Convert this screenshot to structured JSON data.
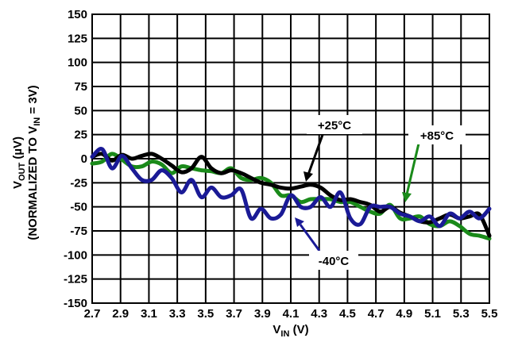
{
  "chart_data": {
    "type": "line",
    "title": "",
    "xlabel": {
      "main": "V",
      "sub": "IN",
      "unit": " (V)"
    },
    "ylabel": {
      "line1": {
        "main": "V",
        "sub": "OUT",
        "unit": " (µV)"
      },
      "line2": {
        "pre": "(NORMALIZED TO V",
        "sub": "IN",
        "post": " = 3V)"
      }
    },
    "xlim": [
      2.7,
      5.5
    ],
    "ylim": [
      -150,
      150
    ],
    "grid": true,
    "x_ticks": [
      "2.7",
      "2.9",
      "3.1",
      "3.3",
      "3.5",
      "3.7",
      "3.9",
      "4.1",
      "4.3",
      "4.5",
      "4.7",
      "4.9",
      "5.1",
      "5.3",
      "5.5"
    ],
    "y_ticks": [
      "150",
      "125",
      "100",
      "75",
      "50",
      "25",
      "0",
      "-25",
      "-50",
      "-75",
      "-100",
      "-125",
      "-150"
    ],
    "series": [
      {
        "name": "+25°C",
        "color": "#000000",
        "x": [
          2.7,
          2.77,
          2.84,
          2.91,
          2.98,
          3.05,
          3.12,
          3.19,
          3.26,
          3.33,
          3.4,
          3.47,
          3.54,
          3.61,
          3.68,
          3.75,
          3.82,
          3.89,
          3.96,
          4.03,
          4.1,
          4.17,
          4.24,
          4.31,
          4.38,
          4.45,
          4.52,
          4.59,
          4.66,
          4.73,
          4.8,
          4.87,
          4.94,
          5.01,
          5.08,
          5.15,
          5.22,
          5.29,
          5.36,
          5.43,
          5.5
        ],
        "y": [
          2,
          5,
          -2,
          4,
          0,
          3,
          5,
          0,
          -7,
          -14,
          -10,
          2,
          -10,
          -15,
          -12,
          -15,
          -20,
          -25,
          -27,
          -30,
          -31,
          -29,
          -27,
          -30,
          -38,
          -43,
          -42,
          -45,
          -48,
          -55,
          -50,
          -56,
          -60,
          -65,
          -66,
          -62,
          -58,
          -62,
          -60,
          -58,
          -80
        ]
      },
      {
        "name": "-40°C",
        "color": "#1a1a96",
        "x": [
          2.7,
          2.77,
          2.84,
          2.91,
          2.98,
          3.05,
          3.12,
          3.19,
          3.26,
          3.33,
          3.4,
          3.47,
          3.54,
          3.61,
          3.68,
          3.75,
          3.82,
          3.89,
          3.96,
          4.03,
          4.1,
          4.17,
          4.24,
          4.31,
          4.38,
          4.45,
          4.52,
          4.59,
          4.66,
          4.73,
          4.8,
          4.87,
          4.94,
          5.01,
          5.08,
          5.15,
          5.22,
          5.29,
          5.36,
          5.43,
          5.5
        ],
        "y": [
          2,
          10,
          -10,
          3,
          -10,
          -22,
          -22,
          -12,
          -20,
          -35,
          -22,
          -40,
          -30,
          -40,
          -38,
          -32,
          -62,
          -52,
          -62,
          -58,
          -38,
          -50,
          -50,
          -40,
          -50,
          -35,
          -62,
          -68,
          -50,
          -50,
          -50,
          -57,
          -60,
          -65,
          -60,
          -70,
          -57,
          -62,
          -55,
          -62,
          -52
        ]
      },
      {
        "name": "+85°C",
        "color": "#1a8a1a",
        "x": [
          2.7,
          2.77,
          2.84,
          2.91,
          2.98,
          3.05,
          3.12,
          3.19,
          3.26,
          3.33,
          3.4,
          3.47,
          3.54,
          3.61,
          3.68,
          3.75,
          3.82,
          3.89,
          3.96,
          4.03,
          4.1,
          4.17,
          4.24,
          4.31,
          4.38,
          4.45,
          4.52,
          4.59,
          4.66,
          4.73,
          4.8,
          4.87,
          4.94,
          5.01,
          5.08,
          5.15,
          5.22,
          5.29,
          5.36,
          5.43,
          5.5
        ],
        "y": [
          -5,
          -3,
          5,
          -1,
          -8,
          -8,
          -3,
          -6,
          -15,
          -8,
          -10,
          -12,
          -13,
          -15,
          -10,
          -20,
          -22,
          -20,
          -25,
          -38,
          -38,
          -45,
          -42,
          -42,
          -42,
          -45,
          -45,
          -50,
          -55,
          -57,
          -48,
          -62,
          -62,
          -60,
          -68,
          -70,
          -65,
          -70,
          -78,
          -80,
          -83
        ]
      }
    ],
    "annotations": [
      {
        "label": "+25°C"
      },
      {
        "label": "+85°C"
      },
      {
        "label": "-40°C"
      }
    ]
  }
}
